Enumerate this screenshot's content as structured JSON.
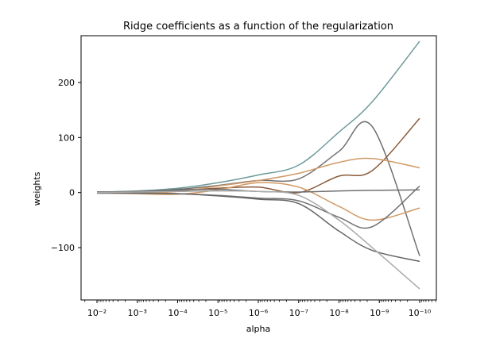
{
  "chart_data": {
    "type": "line",
    "title": "Ridge coefficients as a function of the regularization",
    "xlabel": "alpha",
    "ylabel": "weights",
    "x_scale": "log",
    "x_reversed": true,
    "xlim": [
      0.01,
      1e-10
    ],
    "ylim": [
      -195,
      285
    ],
    "grid": false,
    "legend": "none",
    "x_ticks": [
      {
        "value": 0.01,
        "label": "10⁻²"
      },
      {
        "value": 0.001,
        "label": "10⁻³"
      },
      {
        "value": 0.0001,
        "label": "10⁻⁴"
      },
      {
        "value": 1e-05,
        "label": "10⁻⁵"
      },
      {
        "value": 1e-06,
        "label": "10⁻⁶"
      },
      {
        "value": 1e-07,
        "label": "10⁻⁷"
      },
      {
        "value": 1e-08,
        "label": "10⁻⁸"
      },
      {
        "value": 1e-09,
        "label": "10⁻⁹"
      },
      {
        "value": 1e-10,
        "label": "10⁻¹⁰"
      }
    ],
    "y_ticks": [
      {
        "value": 200,
        "label": "200"
      },
      {
        "value": 100,
        "label": "100"
      },
      {
        "value": 0,
        "label": "0"
      },
      {
        "value": -100,
        "label": "−100"
      }
    ],
    "x": [
      0.01,
      0.001,
      0.0001,
      1e-05,
      1e-06,
      1e-07,
      1e-08,
      1.5e-09,
      1e-10
    ],
    "series": [
      {
        "color": "#6f9a9a",
        "values": [
          1,
          3,
          8,
          18,
          32,
          50,
          110,
          165,
          275
        ]
      },
      {
        "color": "#707070",
        "values": [
          1,
          2,
          6,
          13,
          22,
          25,
          75,
          120,
          -115
        ]
      },
      {
        "color": "#8a5a3a",
        "values": [
          0,
          1,
          4,
          8,
          10,
          0,
          30,
          40,
          135
        ]
      },
      {
        "color": "#d09a65",
        "values": [
          0,
          -1,
          2,
          12,
          22,
          35,
          55,
          62,
          45
        ]
      },
      {
        "color": "#d09a65",
        "values": [
          0,
          -2,
          -3,
          5,
          18,
          10,
          -25,
          -50,
          -28
        ]
      },
      {
        "color": "#707070",
        "values": [
          -1,
          -1,
          -2,
          -5,
          -10,
          -15,
          -45,
          -62,
          12
        ]
      },
      {
        "color": "#707070",
        "values": [
          1,
          2,
          4,
          6,
          2,
          1,
          3,
          4,
          5
        ]
      },
      {
        "color": "#666666",
        "values": [
          -1,
          -1,
          -2,
          -6,
          -12,
          -20,
          -70,
          -105,
          -125
        ]
      },
      {
        "color": "#aaaaaa",
        "values": [
          0,
          1,
          2,
          3,
          2,
          -5,
          -50,
          -100,
          -175
        ]
      }
    ]
  }
}
